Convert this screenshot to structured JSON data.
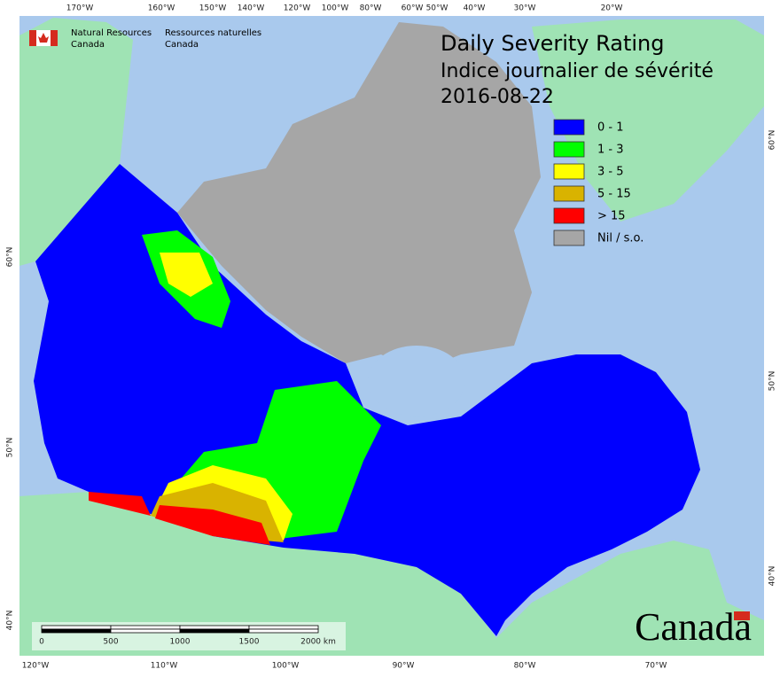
{
  "agency": {
    "en": [
      "Natural Resources",
      "Canada"
    ],
    "fr": [
      "Ressources naturelles",
      "Canada"
    ]
  },
  "title": "Daily Severity Rating",
  "subtitle": "Indice journalier de sévérité",
  "date": "2016-08-22",
  "legend": [
    {
      "label": "0 - 1",
      "color": "#0000ff"
    },
    {
      "label": "1 - 3",
      "color": "#00ff00"
    },
    {
      "label": "3 - 5",
      "color": "#ffff00"
    },
    {
      "label": "5 - 15",
      "color": "#d9b300"
    },
    {
      "label": "> 15",
      "color": "#ff0000"
    },
    {
      "label": "Nil / s.o.",
      "color": "#a6a6a6"
    }
  ],
  "graticule": {
    "top": [
      "170°W",
      "160°W",
      "150°W",
      "140°W",
      "120°W",
      "100°W",
      "80°W",
      "60°W",
      "50°W",
      "40°W",
      "30°W",
      "20°W"
    ],
    "bottom": [
      "120°W",
      "110°W",
      "100°W",
      "90°W",
      "80°W",
      "70°W"
    ],
    "left": [
      "60°N",
      "50°N",
      "40°N"
    ],
    "right": [
      "60°N",
      "50°N",
      "40°N"
    ]
  },
  "scale": [
    "0",
    "500",
    "1000",
    "1500",
    "2000 km"
  ],
  "wordmark": "Canada"
}
